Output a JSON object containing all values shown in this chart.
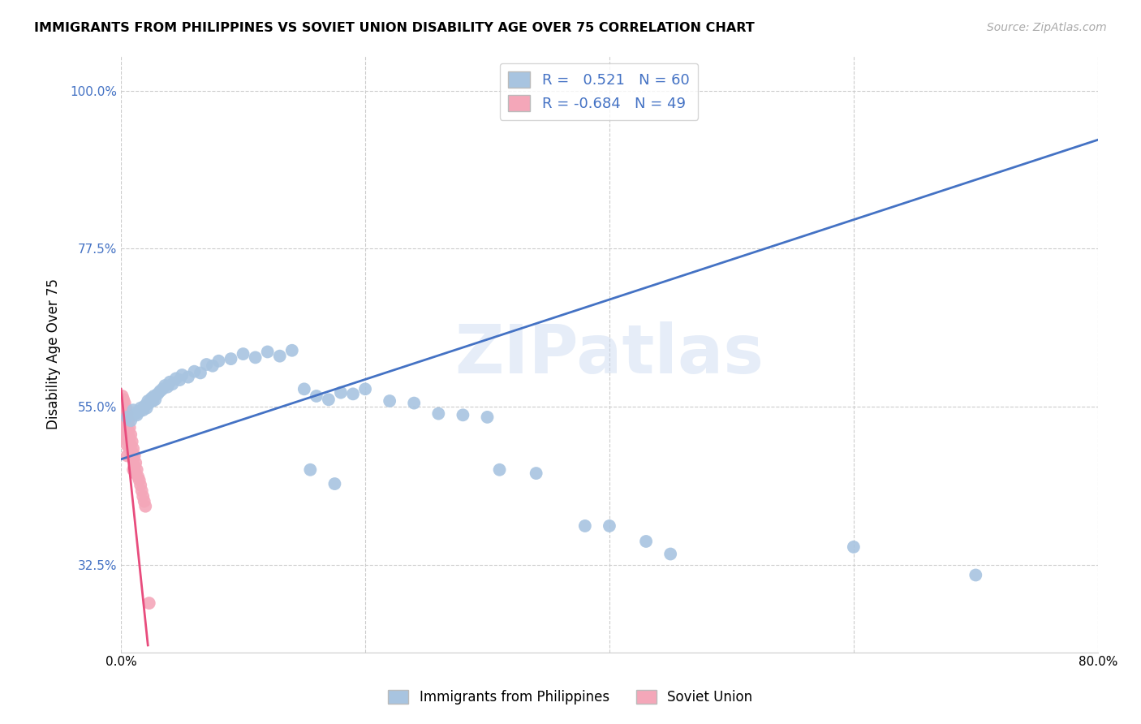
{
  "title": "IMMIGRANTS FROM PHILIPPINES VS SOVIET UNION DISABILITY AGE OVER 75 CORRELATION CHART",
  "source": "Source: ZipAtlas.com",
  "ylabel": "Disability Age Over 75",
  "xlim": [
    0.0,
    0.8
  ],
  "ylim": [
    0.2,
    1.05
  ],
  "xtick_vals": [
    0.0,
    0.2,
    0.4,
    0.6,
    0.8
  ],
  "xtick_labels": [
    "0.0%",
    "",
    "",
    "",
    "80.0%"
  ],
  "ytick_vals": [
    0.325,
    0.55,
    0.775,
    1.0
  ],
  "ytick_labels": [
    "32.5%",
    "55.0%",
    "77.5%",
    "100.0%"
  ],
  "phil_R": 0.521,
  "phil_N": 60,
  "soviet_R": -0.684,
  "soviet_N": 49,
  "phil_color": "#a8c4e0",
  "soviet_color": "#f4a7b9",
  "trendline_phil_color": "#4472c4",
  "trendline_soviet_color": "#e84c7d",
  "watermark": "ZIPatlas",
  "phil_trendline": [
    0.0,
    0.475,
    0.8,
    0.93
  ],
  "soviet_trendline": [
    0.0,
    0.575,
    0.022,
    0.21
  ],
  "phil_scatter_x": [
    0.005,
    0.008,
    0.01,
    0.012,
    0.013,
    0.015,
    0.016,
    0.018,
    0.019,
    0.02,
    0.021,
    0.022,
    0.023,
    0.025,
    0.026,
    0.027,
    0.028,
    0.03,
    0.032,
    0.034,
    0.036,
    0.038,
    0.04,
    0.042,
    0.045,
    0.048,
    0.05,
    0.055,
    0.06,
    0.065,
    0.07,
    0.075,
    0.08,
    0.09,
    0.1,
    0.11,
    0.12,
    0.13,
    0.14,
    0.15,
    0.16,
    0.17,
    0.18,
    0.19,
    0.2,
    0.22,
    0.24,
    0.26,
    0.28,
    0.3,
    0.155,
    0.175,
    0.31,
    0.34,
    0.38,
    0.4,
    0.43,
    0.45,
    0.6,
    0.7
  ],
  "phil_scatter_y": [
    0.535,
    0.53,
    0.545,
    0.54,
    0.538,
    0.543,
    0.548,
    0.545,
    0.55,
    0.552,
    0.548,
    0.558,
    0.555,
    0.562,
    0.558,
    0.565,
    0.56,
    0.568,
    0.572,
    0.575,
    0.58,
    0.578,
    0.585,
    0.582,
    0.59,
    0.588,
    0.595,
    0.592,
    0.6,
    0.598,
    0.61,
    0.608,
    0.615,
    0.618,
    0.625,
    0.62,
    0.628,
    0.622,
    0.63,
    0.575,
    0.565,
    0.56,
    0.57,
    0.568,
    0.575,
    0.558,
    0.555,
    0.54,
    0.538,
    0.535,
    0.46,
    0.44,
    0.46,
    0.455,
    0.38,
    0.38,
    0.358,
    0.34,
    0.35,
    0.31
  ],
  "soviet_scatter_x": [
    0.001,
    0.001,
    0.001,
    0.001,
    0.002,
    0.002,
    0.002,
    0.002,
    0.002,
    0.003,
    0.003,
    0.003,
    0.003,
    0.004,
    0.004,
    0.004,
    0.004,
    0.005,
    0.005,
    0.005,
    0.005,
    0.005,
    0.006,
    0.006,
    0.006,
    0.007,
    0.007,
    0.007,
    0.008,
    0.008,
    0.008,
    0.009,
    0.009,
    0.01,
    0.01,
    0.01,
    0.011,
    0.011,
    0.012,
    0.012,
    0.013,
    0.014,
    0.015,
    0.016,
    0.017,
    0.018,
    0.019,
    0.02,
    0.023
  ],
  "soviet_scatter_y": [
    0.565,
    0.548,
    0.535,
    0.52,
    0.56,
    0.545,
    0.532,
    0.518,
    0.505,
    0.555,
    0.54,
    0.525,
    0.51,
    0.548,
    0.532,
    0.518,
    0.505,
    0.54,
    0.525,
    0.51,
    0.495,
    0.48,
    0.53,
    0.515,
    0.5,
    0.52,
    0.505,
    0.49,
    0.51,
    0.495,
    0.48,
    0.5,
    0.485,
    0.49,
    0.475,
    0.46,
    0.48,
    0.465,
    0.47,
    0.455,
    0.46,
    0.45,
    0.445,
    0.438,
    0.43,
    0.422,
    0.415,
    0.408,
    0.27
  ]
}
